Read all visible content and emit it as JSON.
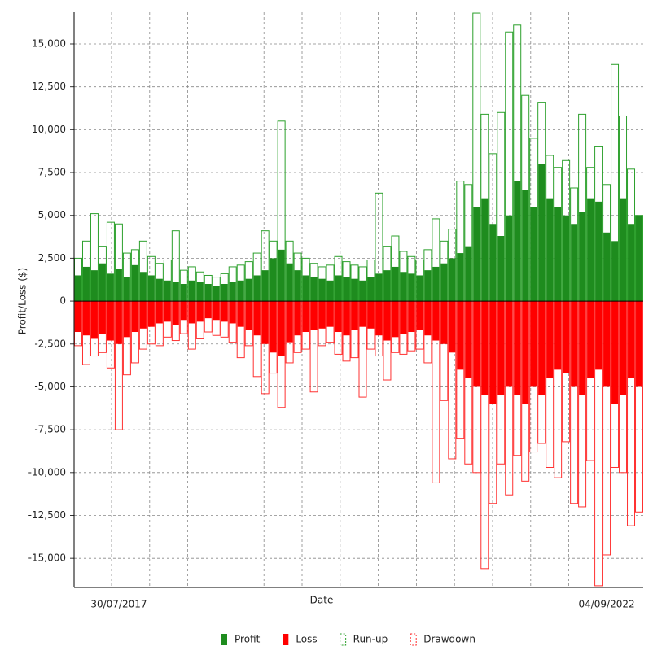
{
  "chart_data": {
    "type": "bar",
    "y_label": "Profit/Loss ($)",
    "x_label": "Date",
    "categories": [
      null,
      null,
      null,
      null,
      null,
      "30/07/2017",
      null,
      null,
      null,
      null,
      null,
      null,
      null,
      null,
      null,
      null,
      null,
      null,
      null,
      null,
      null,
      null,
      null,
      null,
      null,
      null,
      null,
      null,
      null,
      null,
      null,
      null,
      null,
      null,
      null,
      null,
      null,
      null,
      null,
      null,
      null,
      null,
      null,
      null,
      null,
      null,
      null,
      null,
      null,
      null,
      null,
      null,
      null,
      null,
      null,
      null,
      null,
      null,
      null,
      null,
      null,
      null,
      null,
      null,
      null,
      "04/09/2022",
      null,
      null,
      null,
      null
    ],
    "ylim": [
      -16700,
      16850
    ],
    "yticks": [
      {
        "value": 15000,
        "label": "15,000"
      },
      {
        "value": 12500,
        "label": "12,500"
      },
      {
        "value": 10000,
        "label": "10,000"
      },
      {
        "value": 7500,
        "label": "7,500"
      },
      {
        "value": 5000,
        "label": "5,000"
      },
      {
        "value": 2500,
        "label": "2,500"
      },
      0,
      {
        "value": -2500,
        "label": "-2,500"
      },
      {
        "value": -5000,
        "label": "-5,000"
      },
      {
        "value": -7500,
        "label": "-7,500"
      },
      {
        "value": -10000,
        "label": "-10,000"
      },
      {
        "value": -12500,
        "label": "-12,500"
      },
      {
        "value": -15000,
        "label": "-15,000"
      }
    ],
    "grid": true,
    "series": [
      {
        "name": "Run-up",
        "color": "#2ca02c",
        "style": "outline",
        "values": [
          2500,
          3500,
          5100,
          3200,
          4600,
          4500,
          2800,
          3000,
          3500,
          2600,
          2200,
          2400,
          4100,
          1800,
          2000,
          1700,
          1500,
          1400,
          1600,
          2000,
          2100,
          2300,
          2800,
          4100,
          3500,
          10500,
          3500,
          2800,
          2500,
          2200,
          2000,
          2100,
          2600,
          2300,
          2100,
          2000,
          2400,
          6300,
          3200,
          3800,
          2900,
          2600,
          2400,
          3000,
          4800,
          3500,
          4200,
          7000,
          6800,
          16800,
          10900,
          8600,
          11000,
          15700,
          16100,
          12000,
          9500,
          11600,
          8500,
          7800,
          8200,
          6600,
          10900,
          7800,
          9000,
          6800,
          13800,
          10800,
          7700,
          5000
        ]
      },
      {
        "name": "Drawdown",
        "color": "#ff3030",
        "style": "outline",
        "values": [
          -2600,
          -3700,
          -3200,
          -3000,
          -3900,
          -7500,
          -4300,
          -3600,
          -2800,
          -2500,
          -2600,
          -2100,
          -2300,
          -1900,
          -2800,
          -2200,
          -1800,
          -2000,
          -2100,
          -2400,
          -3300,
          -2600,
          -4400,
          -5400,
          -4200,
          -6200,
          -3600,
          -3000,
          -2800,
          -5300,
          -2600,
          -2400,
          -3100,
          -3500,
          -3300,
          -5600,
          -2800,
          -3200,
          -4600,
          -3000,
          -3100,
          -2900,
          -2800,
          -3600,
          -10600,
          -5800,
          -9200,
          -8000,
          -9500,
          -10000,
          -15600,
          -11800,
          -9500,
          -11300,
          -9000,
          -10500,
          -8800,
          -8300,
          -9700,
          -10300,
          -8200,
          -11800,
          -12000,
          -9300,
          -16600,
          -14800,
          -9700,
          -10000,
          -13100,
          -12300
        ]
      },
      {
        "name": "Profit",
        "color": "#1e8c1e",
        "style": "fill",
        "values": [
          1500,
          2000,
          1800,
          2200,
          1600,
          1900,
          1400,
          2100,
          1700,
          1500,
          1300,
          1200,
          1100,
          1000,
          1200,
          1100,
          1000,
          900,
          1000,
          1100,
          1200,
          1300,
          1500,
          1800,
          2500,
          3000,
          2200,
          1800,
          1500,
          1400,
          1300,
          1200,
          1500,
          1400,
          1300,
          1200,
          1400,
          1600,
          1800,
          2000,
          1700,
          1600,
          1500,
          1800,
          2000,
          2200,
          2500,
          2800,
          3200,
          5500,
          6000,
          4500,
          3800,
          5000,
          7000,
          6500,
          5500,
          8000,
          6000,
          5500,
          5000,
          4500,
          5200,
          6000,
          5800,
          4000,
          3500,
          6000,
          4500,
          5000
        ]
      },
      {
        "name": "Loss",
        "color": "#ff0000",
        "style": "fill",
        "values": [
          -1800,
          -2000,
          -2200,
          -1900,
          -2300,
          -2500,
          -2100,
          -1800,
          -1600,
          -1500,
          -1300,
          -1200,
          -1400,
          -1100,
          -1300,
          -1200,
          -1000,
          -1100,
          -1200,
          -1300,
          -1500,
          -1700,
          -2000,
          -2500,
          -3000,
          -3200,
          -2400,
          -2000,
          -1800,
          -1700,
          -1600,
          -1500,
          -1800,
          -2000,
          -1700,
          -1500,
          -1600,
          -2000,
          -2300,
          -2100,
          -1900,
          -1800,
          -1700,
          -2000,
          -2300,
          -2500,
          -3000,
          -4000,
          -4500,
          -5000,
          -5500,
          -6000,
          -5500,
          -5000,
          -5500,
          -6000,
          -5000,
          -5500,
          -4500,
          -4000,
          -4200,
          -5000,
          -5500,
          -4500,
          -4000,
          -5000,
          -6000,
          -5500,
          -4500,
          -5000
        ]
      }
    ]
  }
}
